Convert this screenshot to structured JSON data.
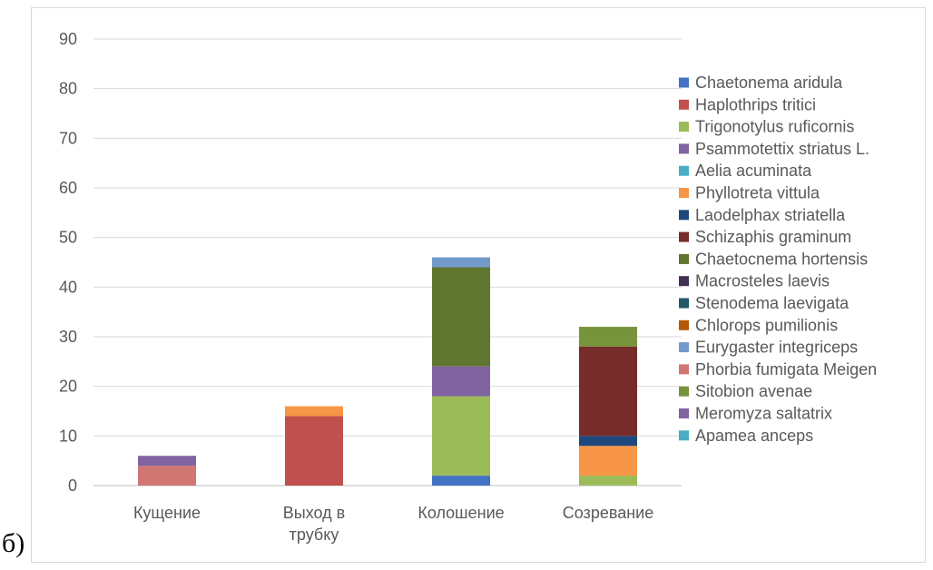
{
  "panel_label": "б)",
  "chart_data": {
    "type": "bar",
    "stacked": true,
    "title": "",
    "xlabel": "",
    "ylabel": "",
    "ylim": [
      0,
      90
    ],
    "yticks": [
      0,
      10,
      20,
      30,
      40,
      50,
      60,
      70,
      80,
      90
    ],
    "grid": true,
    "legend_position": "right",
    "categories": [
      [
        "Кущение"
      ],
      [
        "Выход в",
        "трубку"
      ],
      [
        "Колошение"
      ],
      [
        "Созревание"
      ]
    ],
    "series": [
      {
        "name": "Chaetonema aridula",
        "color": "#4472c4",
        "values": [
          0,
          0,
          2,
          0
        ]
      },
      {
        "name": "Haplothrips tritici",
        "color": "#c0504d",
        "values": [
          0,
          14,
          0,
          0
        ]
      },
      {
        "name": "Trigonotylus ruficornis",
        "color": "#9bbb59",
        "values": [
          0,
          0,
          16,
          2
        ]
      },
      {
        "name": "Psammotettix striatus L.",
        "color": "#8064a2",
        "values": [
          0,
          0,
          6,
          0
        ]
      },
      {
        "name": "Aelia acuminata",
        "color": "#4bacc6",
        "values": [
          0,
          0,
          0,
          0
        ]
      },
      {
        "name": "Phyllotreta vittula",
        "color": "#f79646",
        "values": [
          0,
          2,
          0,
          6
        ]
      },
      {
        "name": "Laodelphax striatella",
        "color": "#1f497d",
        "values": [
          0,
          0,
          0,
          2
        ]
      },
      {
        "name": "Schizaphis graminum",
        "color": "#772c2a",
        "values": [
          0,
          0,
          0,
          18
        ]
      },
      {
        "name": "Chaetocnema hortensis",
        "color": "#5f7530",
        "values": [
          0,
          0,
          20,
          0
        ]
      },
      {
        "name": "Macrosteles laevis",
        "color": "#403152",
        "values": [
          0,
          0,
          0,
          0
        ]
      },
      {
        "name": "Stenodema laevigata",
        "color": "#215968",
        "values": [
          0,
          0,
          0,
          0
        ]
      },
      {
        "name": "Chlorops pumilionis",
        "color": "#b65708",
        "values": [
          0,
          0,
          0,
          0
        ]
      },
      {
        "name": "Eurygaster integriceps",
        "color": "#729aca",
        "values": [
          0,
          0,
          2,
          0
        ]
      },
      {
        "name": "Phorbia fumigata Meigen",
        "color": "#d07673",
        "values": [
          4,
          0,
          0,
          0
        ]
      },
      {
        "name": "Sitobion avenae",
        "color": "#77933c",
        "values": [
          0,
          0,
          0,
          4
        ]
      },
      {
        "name": "Meromyza saltatrix",
        "color": "#8064a2",
        "values": [
          2,
          0,
          0,
          0
        ]
      },
      {
        "name": "Apamea anceps",
        "color": "#4bacc6",
        "values": [
          0,
          0,
          0,
          0
        ]
      }
    ]
  }
}
